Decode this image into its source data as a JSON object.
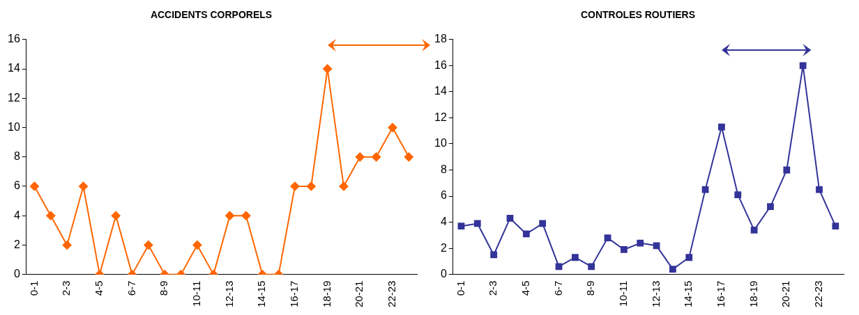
{
  "chart_data": [
    {
      "type": "line",
      "title": "ACCIDENTS CORPORELS",
      "categories": [
        "0-1",
        null,
        "2-3",
        null,
        "4-5",
        null,
        "6-7",
        null,
        "8-9",
        null,
        "10-11",
        null,
        "12-13",
        null,
        "14-15",
        null,
        "16-17",
        null,
        "18-19",
        null,
        "20-21",
        null,
        "22-23",
        null
      ],
      "series": [
        {
          "color": "#ff6600",
          "values": [
            6,
            4,
            2,
            6,
            0,
            4,
            0,
            2,
            0,
            0,
            2,
            0,
            4,
            4,
            0,
            0,
            6,
            6,
            14,
            6,
            8,
            8,
            10,
            8
          ]
        }
      ],
      "ylim": [
        0,
        16
      ],
      "yticks": [
        0,
        2,
        4,
        6,
        8,
        10,
        12,
        14,
        16
      ],
      "marker": "diamond",
      "grid": false,
      "legend": false
    },
    {
      "type": "line",
      "title": "CONTROLES ROUTIERS",
      "categories": [
        "0-1",
        null,
        "2-3",
        null,
        "4-5",
        null,
        "6-7",
        null,
        "8-9",
        null,
        "10-11",
        null,
        "12-13",
        null,
        "14-15",
        null,
        "16-17",
        null,
        "18-19",
        null,
        "20-21",
        null,
        "22-23",
        null
      ],
      "series": [
        {
          "color": "#333399",
          "values": [
            3.7,
            3.9,
            1.5,
            4.3,
            3.1,
            3.9,
            0.6,
            1.3,
            0.6,
            2.8,
            1.9,
            2.4,
            2.2,
            0.4,
            1.3,
            6.5,
            11.3,
            6.1,
            3.4,
            5.2,
            8.0,
            16,
            6.5,
            3.7
          ]
        }
      ],
      "ylim": [
        0,
        18
      ],
      "yticks": [
        0,
        2,
        4,
        6,
        8,
        10,
        12,
        14,
        16,
        18
      ],
      "marker": "square",
      "grid": false,
      "legend": false
    }
  ]
}
